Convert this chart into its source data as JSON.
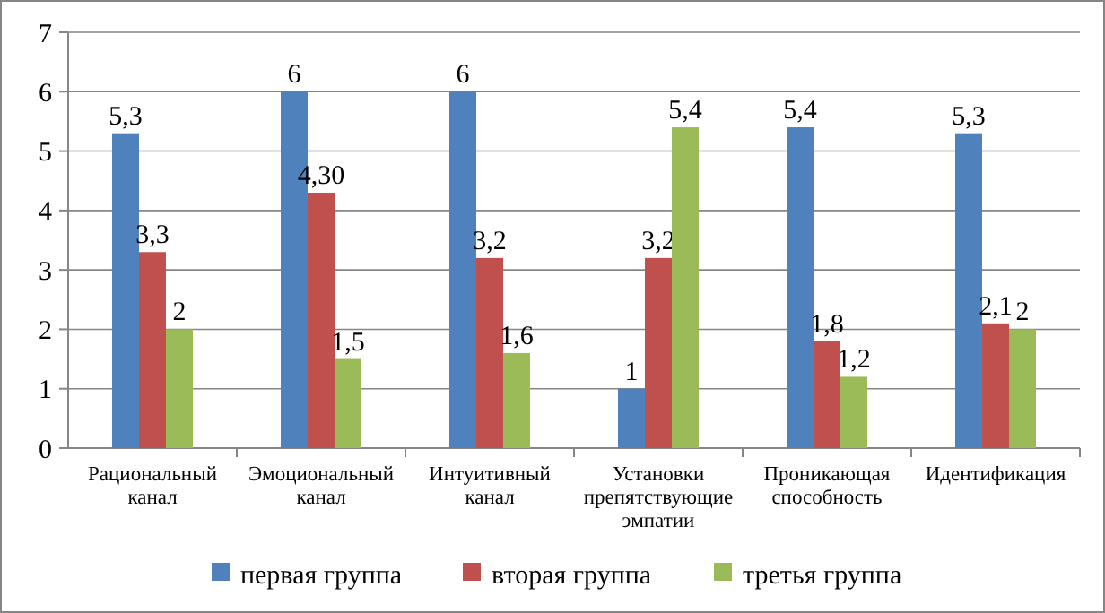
{
  "chart_data": {
    "type": "bar",
    "categories": [
      "Рациональный канал",
      "Эмоциональный канал",
      "Интуитивный канал",
      "Установки препятствующие эмпатии",
      "Проникающая способность",
      "Идентификация"
    ],
    "series": [
      {
        "name": "первая группа",
        "color": "#4f81bd",
        "values": [
          5.3,
          6,
          6,
          1,
          5.4,
          5.3
        ],
        "value_labels": [
          "5,3",
          "6",
          "6",
          "1",
          "5,4",
          "5,3"
        ]
      },
      {
        "name": "вторая группа",
        "color": "#c0504d",
        "values": [
          3.3,
          4.3,
          3.2,
          3.2,
          1.8,
          2.1
        ],
        "value_labels": [
          "3,3",
          "4,30",
          "3,2",
          "3,2",
          "1,8",
          "2,1"
        ]
      },
      {
        "name": "третья группа",
        "color": "#9bbb59",
        "values": [
          2,
          1.5,
          1.6,
          5.4,
          1.2,
          2
        ],
        "value_labels": [
          "2",
          "1,5",
          "1,6",
          "5,4",
          "1,2",
          "2"
        ]
      }
    ],
    "ylim": [
      0,
      7
    ],
    "yticks": [
      0,
      1,
      2,
      3,
      4,
      5,
      6,
      7
    ],
    "grid": "y",
    "legend": "bottom"
  }
}
